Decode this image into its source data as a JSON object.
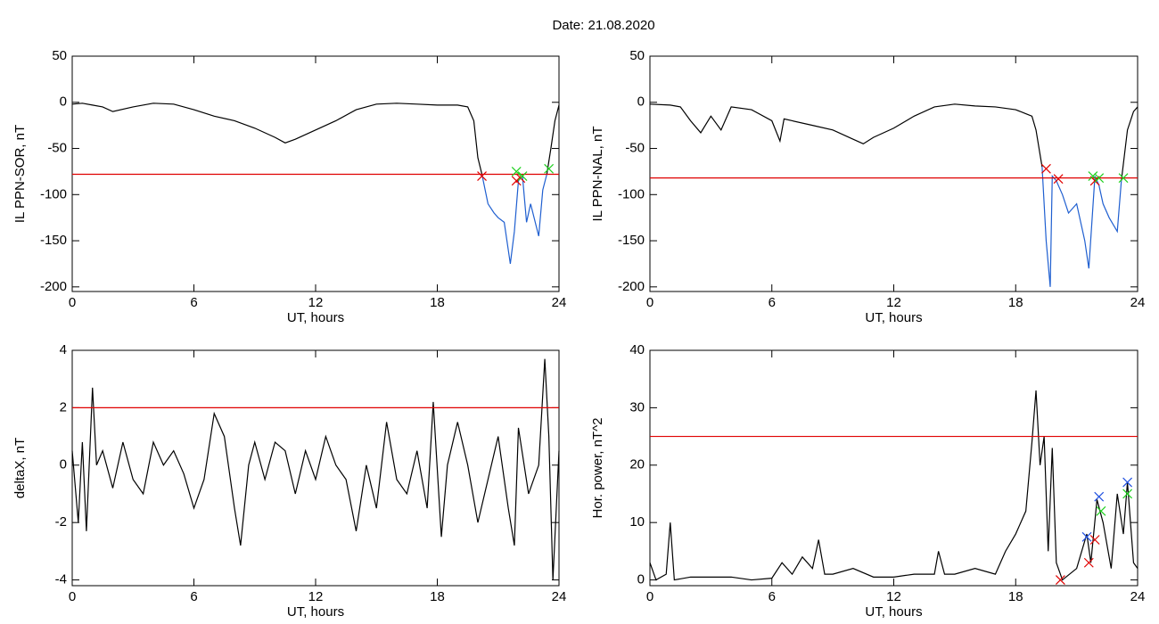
{
  "title": "Date:  21.08.2020",
  "chart_data": [
    {
      "type": "line",
      "ylabel": "IL PPN-SOR, nT",
      "xlabel": "UT, hours",
      "xlim": [
        0,
        24
      ],
      "xticks": [
        0,
        6,
        12,
        18,
        24
      ],
      "ylim": [
        -205,
        50
      ],
      "yticks": [
        50,
        0,
        -50,
        -100,
        -150,
        -200
      ],
      "series": [
        {
          "color": "#000000",
          "x": [
            0,
            0.5,
            1,
            1.5,
            2,
            3,
            4,
            5,
            6,
            7,
            8,
            9,
            10,
            10.5,
            11,
            12,
            13,
            14,
            15,
            16,
            17,
            18,
            19,
            19.5,
            19.8,
            20,
            20.2
          ],
          "values": [
            -2,
            -1,
            -3,
            -5,
            -10,
            -5,
            -1,
            -2,
            -8,
            -15,
            -20,
            -28,
            -38,
            -44,
            -40,
            -30,
            -20,
            -8,
            -2,
            -1,
            -2,
            -3,
            -3,
            -5,
            -20,
            -60,
            -78
          ]
        },
        {
          "color": "#1f5fd0",
          "x": [
            20.2,
            20.5,
            20.8,
            21,
            21.3,
            21.6,
            21.8,
            22,
            22.2,
            22.4,
            22.6,
            23,
            23.2,
            23.4
          ],
          "values": [
            -78,
            -110,
            -120,
            -125,
            -130,
            -175,
            -140,
            -85,
            -80,
            -130,
            -110,
            -145,
            -95,
            -78
          ]
        },
        {
          "color": "#000000",
          "x": [
            23.4,
            23.6,
            23.8,
            24
          ],
          "values": [
            -78,
            -50,
            -20,
            -3
          ]
        },
        {
          "color": "#e00000",
          "x": [
            0,
            24
          ],
          "values": [
            -78,
            -78
          ]
        },
        {
          "color": "#e00000",
          "marker": "x",
          "x": [
            20.2,
            21.9,
            22.1
          ],
          "values": [
            -80,
            -85,
            -82
          ]
        },
        {
          "color": "#20d020",
          "marker": "x",
          "x": [
            21.9,
            22.2,
            23.5
          ],
          "values": [
            -75,
            -80,
            -72
          ]
        }
      ]
    },
    {
      "type": "line",
      "ylabel": "IL PPN-NAL, nT",
      "xlabel": "UT, hours",
      "xlim": [
        0,
        24
      ],
      "xticks": [
        0,
        6,
        12,
        18,
        24
      ],
      "ylim": [
        -205,
        50
      ],
      "yticks": [
        50,
        0,
        -50,
        -100,
        -150,
        -200
      ],
      "series": [
        {
          "color": "#000000",
          "x": [
            0,
            1,
            1.5,
            2,
            2.5,
            3,
            3.5,
            4,
            5,
            6,
            6.4,
            6.6,
            7,
            8,
            9,
            10,
            10.5,
            11,
            12,
            13,
            14,
            15,
            16,
            17,
            18,
            18.8,
            19,
            19.3
          ],
          "values": [
            -2,
            -3,
            -5,
            -20,
            -33,
            -15,
            -30,
            -5,
            -8,
            -20,
            -42,
            -18,
            -20,
            -25,
            -30,
            -40,
            -45,
            -38,
            -28,
            -15,
            -5,
            -2,
            -4,
            -5,
            -8,
            -15,
            -30,
            -70
          ]
        },
        {
          "color": "#1f5fd0",
          "x": [
            19.3,
            19.5,
            19.7,
            19.8,
            20,
            20.3,
            20.6,
            21,
            21.4,
            21.6,
            21.9,
            22.1,
            22.3,
            22.6,
            23,
            23.2
          ],
          "values": [
            -70,
            -150,
            -200,
            -80,
            -85,
            -100,
            -120,
            -110,
            -150,
            -180,
            -80,
            -90,
            -110,
            -125,
            -140,
            -85
          ]
        },
        {
          "color": "#000000",
          "x": [
            23.2,
            23.5,
            23.8,
            24
          ],
          "values": [
            -85,
            -30,
            -10,
            -5
          ]
        },
        {
          "color": "#e00000",
          "x": [
            0,
            24
          ],
          "values": [
            -82,
            -82
          ]
        },
        {
          "color": "#e00000",
          "marker": "x",
          "x": [
            19.5,
            20.1,
            21.9
          ],
          "values": [
            -72,
            -83,
            -85
          ]
        },
        {
          "color": "#20d020",
          "marker": "x",
          "x": [
            21.8,
            22.1,
            23.3
          ],
          "values": [
            -80,
            -82,
            -82
          ]
        }
      ]
    },
    {
      "type": "line",
      "ylabel": "deltaX, nT",
      "xlabel": "UT, hours",
      "xlim": [
        0,
        24
      ],
      "xticks": [
        0,
        6,
        12,
        18,
        24
      ],
      "ylim": [
        -4.2,
        4
      ],
      "yticks": [
        4,
        2,
        0,
        -2,
        -4
      ],
      "series": [
        {
          "color": "#000000",
          "x": [
            0,
            0.3,
            0.5,
            0.7,
            1,
            1.2,
            1.5,
            2,
            2.5,
            3,
            3.5,
            4,
            4.5,
            5,
            5.5,
            6,
            6.5,
            7,
            7.5,
            8,
            8.3,
            8.7,
            9,
            9.5,
            10,
            10.5,
            11,
            11.5,
            12,
            12.5,
            13,
            13.5,
            14,
            14.5,
            15,
            15.5,
            16,
            16.5,
            17,
            17.5,
            17.8,
            18.2,
            18.5,
            19,
            19.5,
            20,
            20.5,
            21,
            21.5,
            21.8,
            22,
            22.5,
            23,
            23.3,
            23.5,
            23.7,
            24
          ],
          "values": [
            0.5,
            -2,
            0.8,
            -2.3,
            2.7,
            0,
            0.5,
            -0.8,
            0.8,
            -0.5,
            -1,
            0.8,
            0,
            0.5,
            -0.3,
            -1.5,
            -0.5,
            1.8,
            1,
            -1.5,
            -2.8,
            0,
            0.8,
            -0.5,
            0.8,
            0.5,
            -1,
            0.5,
            -0.5,
            1,
            0,
            -0.5,
            -2.3,
            0,
            -1.5,
            1.5,
            -0.5,
            -1,
            0.5,
            -1.5,
            2.2,
            -2.5,
            0,
            1.5,
            0,
            -2,
            -0.5,
            1,
            -1.5,
            -2.8,
            1.3,
            -1,
            0,
            3.7,
            1,
            -4,
            0.5
          ]
        },
        {
          "color": "#e00000",
          "x": [
            0,
            24
          ],
          "values": [
            2,
            2
          ]
        }
      ]
    },
    {
      "type": "line",
      "ylabel": "Hor. power, nT^2",
      "xlabel": "UT, hours",
      "xlim": [
        0,
        24
      ],
      "xticks": [
        0,
        6,
        12,
        18,
        24
      ],
      "ylim": [
        -1,
        40
      ],
      "yticks": [
        40,
        30,
        20,
        10,
        0
      ],
      "series": [
        {
          "color": "#000000",
          "x": [
            0,
            0.3,
            0.8,
            1,
            1.2,
            2,
            4,
            5,
            6,
            6.5,
            7,
            7.5,
            8,
            8.3,
            8.6,
            9,
            10,
            11,
            12,
            13,
            14,
            14.2,
            14.5,
            15,
            16,
            17,
            17.5,
            18,
            18.5,
            18.8,
            19,
            19.2,
            19.4,
            19.6,
            19.8,
            20,
            20.3,
            21,
            21.5,
            21.7,
            22,
            22.3,
            22.7,
            23,
            23.3,
            23.5,
            23.8,
            24
          ],
          "values": [
            3,
            0,
            1,
            10,
            0,
            0.5,
            0.5,
            0,
            0.3,
            3,
            1,
            4,
            2,
            7,
            1,
            1,
            2,
            0.5,
            0.5,
            1,
            1,
            5,
            1,
            1,
            2,
            1,
            5,
            8,
            12,
            24,
            33,
            20,
            25,
            5,
            23,
            3,
            0,
            2,
            8,
            3,
            14,
            10,
            2,
            15,
            8,
            17,
            3,
            2
          ]
        },
        {
          "color": "#e00000",
          "x": [
            0,
            24
          ],
          "values": [
            25,
            25
          ]
        },
        {
          "color": "#2050e0",
          "marker": "x",
          "x": [
            21.5,
            22.1,
            23.5
          ],
          "values": [
            7.5,
            14.5,
            17
          ]
        },
        {
          "color": "#20d020",
          "marker": "x",
          "x": [
            22.2,
            23.5
          ],
          "values": [
            12,
            15
          ]
        },
        {
          "color": "#e00000",
          "marker": "x",
          "x": [
            20.2,
            21.6,
            21.9
          ],
          "values": [
            0,
            3,
            7
          ]
        }
      ]
    }
  ]
}
